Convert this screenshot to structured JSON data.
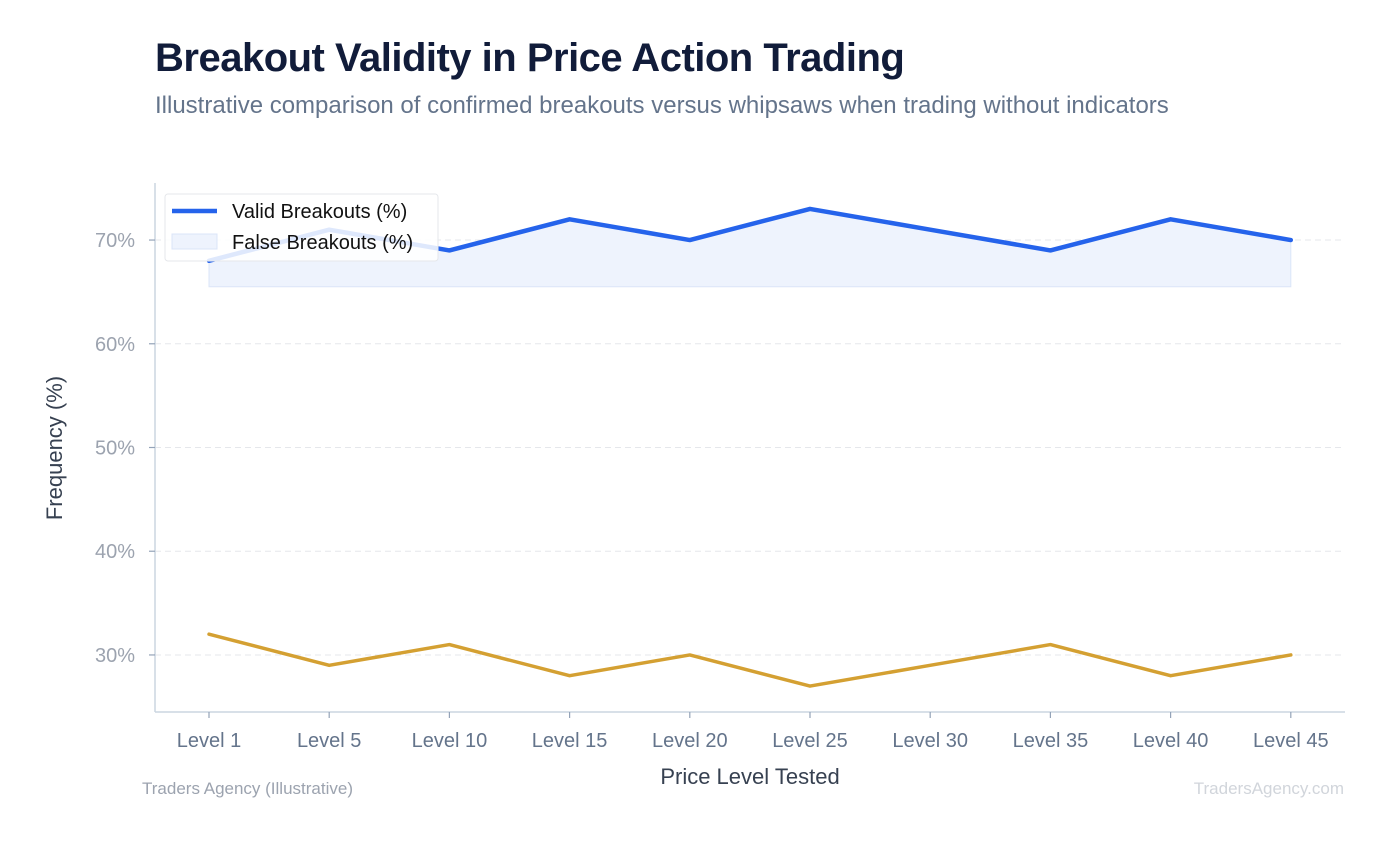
{
  "header": {
    "title": "Breakout Validity in Price Action Trading",
    "subtitle": "Illustrative comparison of confirmed breakouts versus whipsaws when trading without indicators"
  },
  "footer": {
    "source": "Traders Agency (Illustrative)",
    "watermark": "TradersAgency.com"
  },
  "chart_data": {
    "type": "line",
    "title": "Breakout Validity in Price Action Trading",
    "subtitle": "Illustrative comparison of confirmed breakouts versus whipsaws when trading without indicators",
    "xlabel": "Price Level Tested",
    "ylabel": "Frequency (%)",
    "categories": [
      "Level 1",
      "Level 5",
      "Level 10",
      "Level 15",
      "Level 20",
      "Level 25",
      "Level 30",
      "Level 35",
      "Level 40",
      "Level 45"
    ],
    "series": [
      {
        "name": "Valid Breakouts (%)",
        "values": [
          68,
          71,
          69,
          72,
          70,
          73,
          71,
          69,
          72,
          70
        ],
        "color": "#2563eb",
        "fill": "#eef3fd"
      },
      {
        "name": "False Breakouts (%)",
        "values": [
          32,
          29,
          31,
          28,
          30,
          27,
          29,
          31,
          28,
          30
        ],
        "color": "#d4a032"
      }
    ],
    "ylim": [
      24.5,
      75.5
    ],
    "yticks": [
      30,
      40,
      50,
      60,
      70
    ],
    "ytick_labels": [
      "30%",
      "40%",
      "50%",
      "60%",
      "70%"
    ],
    "grid": true,
    "legend_position": "top-left"
  }
}
